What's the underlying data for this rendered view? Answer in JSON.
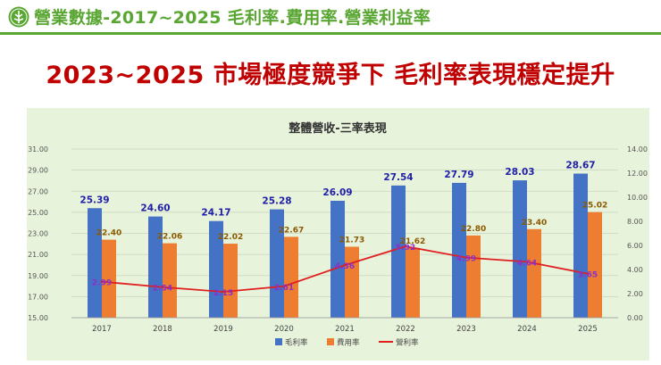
{
  "header": {
    "title": "營業數據-2017~2025 毛利率.費用率.營業利益率"
  },
  "headline": "2023~2025 市場極度競爭下 毛利率表現穩定提升",
  "colors": {
    "gross": "#4472c4",
    "expense": "#ed7d31",
    "operating": "#e02020",
    "gross_label": "#1f1fa8",
    "expense_label": "#8b5a00",
    "operating_label": "#8b2fc9",
    "header_green": "#5aa632",
    "headline_red": "#c00000"
  },
  "chart_data": {
    "type": "bar",
    "title": "整體營收-三率表現",
    "categories": [
      "2017",
      "2018",
      "2019",
      "2020",
      "2021",
      "2022",
      "2023",
      "2024",
      "2025"
    ],
    "series": [
      {
        "name": "毛利率",
        "type": "bar",
        "axis": "left",
        "values": [
          25.39,
          24.6,
          24.17,
          25.28,
          26.09,
          27.54,
          27.79,
          28.03,
          28.67
        ],
        "labels": [
          "25.39",
          "24.60",
          "24.17",
          "25.28",
          "26.09",
          "27.54",
          "27.79",
          "28.03",
          "28.67"
        ]
      },
      {
        "name": "費用率",
        "type": "bar",
        "axis": "left",
        "values": [
          22.4,
          22.06,
          22.02,
          22.67,
          21.73,
          21.62,
          22.8,
          23.4,
          25.02
        ],
        "labels": [
          "22.40",
          "22.06",
          "22.02",
          "22.67",
          "21.73",
          "21.62",
          "22.80",
          "23.40",
          "25.02"
        ]
      },
      {
        "name": "營利率",
        "type": "line",
        "axis": "right",
        "values": [
          2.99,
          2.54,
          2.15,
          2.61,
          4.36,
          5.92,
          4.99,
          4.64,
          3.65
        ],
        "labels": [
          "2.99",
          "2.54",
          "2.15",
          "2.61",
          "4.36",
          "5.92",
          "4.99",
          "4.64",
          "3.65"
        ]
      }
    ],
    "y_left": {
      "min": 15,
      "max": 31,
      "step": 2,
      "ticks": [
        "15.00",
        "17.00",
        "19.00",
        "21.00",
        "23.00",
        "25.00",
        "27.00",
        "29.00",
        "31.00"
      ]
    },
    "y_right": {
      "min": 0,
      "max": 14,
      "step": 2,
      "ticks": [
        "0.00",
        "2.00",
        "4.00",
        "6.00",
        "8.00",
        "10.00",
        "12.00",
        "14.00"
      ]
    },
    "grid": true,
    "legend_position": "bottom"
  }
}
